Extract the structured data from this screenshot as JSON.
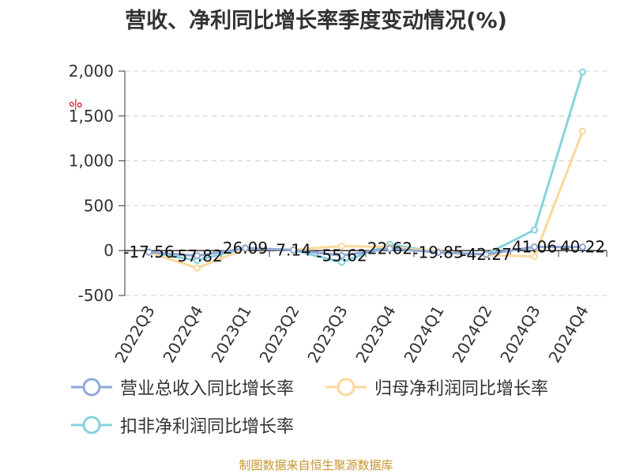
{
  "title": "营收、净利同比增长率季度变动情况(%)",
  "unit_label": "%",
  "source": "制图数据来自恒生聚源数据库",
  "legend": [
    {
      "label": "营业总收入同比增长率",
      "color": "#8fa8d8"
    },
    {
      "label": "归母净利润同比增长率",
      "color": "#fbd89a"
    },
    {
      "label": "扣非净利润同比增长率",
      "color": "#86d3dc"
    }
  ],
  "chart_data": {
    "type": "line",
    "categories": [
      "2022Q3",
      "2022Q4",
      "2023Q1",
      "2023Q2",
      "2023Q3",
      "2023Q4",
      "2024Q1",
      "2024Q2",
      "2024Q3",
      "2024Q4"
    ],
    "ylim": [
      -500,
      2000
    ],
    "yticks": [
      -500,
      0,
      500,
      1000,
      1500,
      2000
    ],
    "ytick_labels": [
      "-500",
      "0",
      "500",
      "1,000",
      "1,500",
      "2,000"
    ],
    "grid": true,
    "series": [
      {
        "name": "营业总收入同比增长率",
        "color": "#8fa8d8",
        "values": [
          -17.56,
          -57.82,
          26.09,
          7.14,
          -55.62,
          22.62,
          -19.85,
          -42.27,
          41.06,
          40.22
        ],
        "labels": [
          "-17.56",
          "-57.82",
          "26.09",
          "7.14",
          "-55.62",
          "22.62",
          "-19.85",
          "-42.27",
          "41.06",
          "40.22"
        ]
      },
      {
        "name": "归母净利润同比增长率",
        "color": "#fbd89a",
        "values": [
          -20,
          -195,
          20,
          10,
          50,
          40,
          -10,
          -50,
          -65,
          1330
        ]
      },
      {
        "name": "扣非净利润同比增长率",
        "color": "#86d3dc",
        "values": [
          -15,
          -110,
          30,
          5,
          -130,
          70,
          -20,
          -40,
          230,
          1990
        ]
      }
    ]
  }
}
